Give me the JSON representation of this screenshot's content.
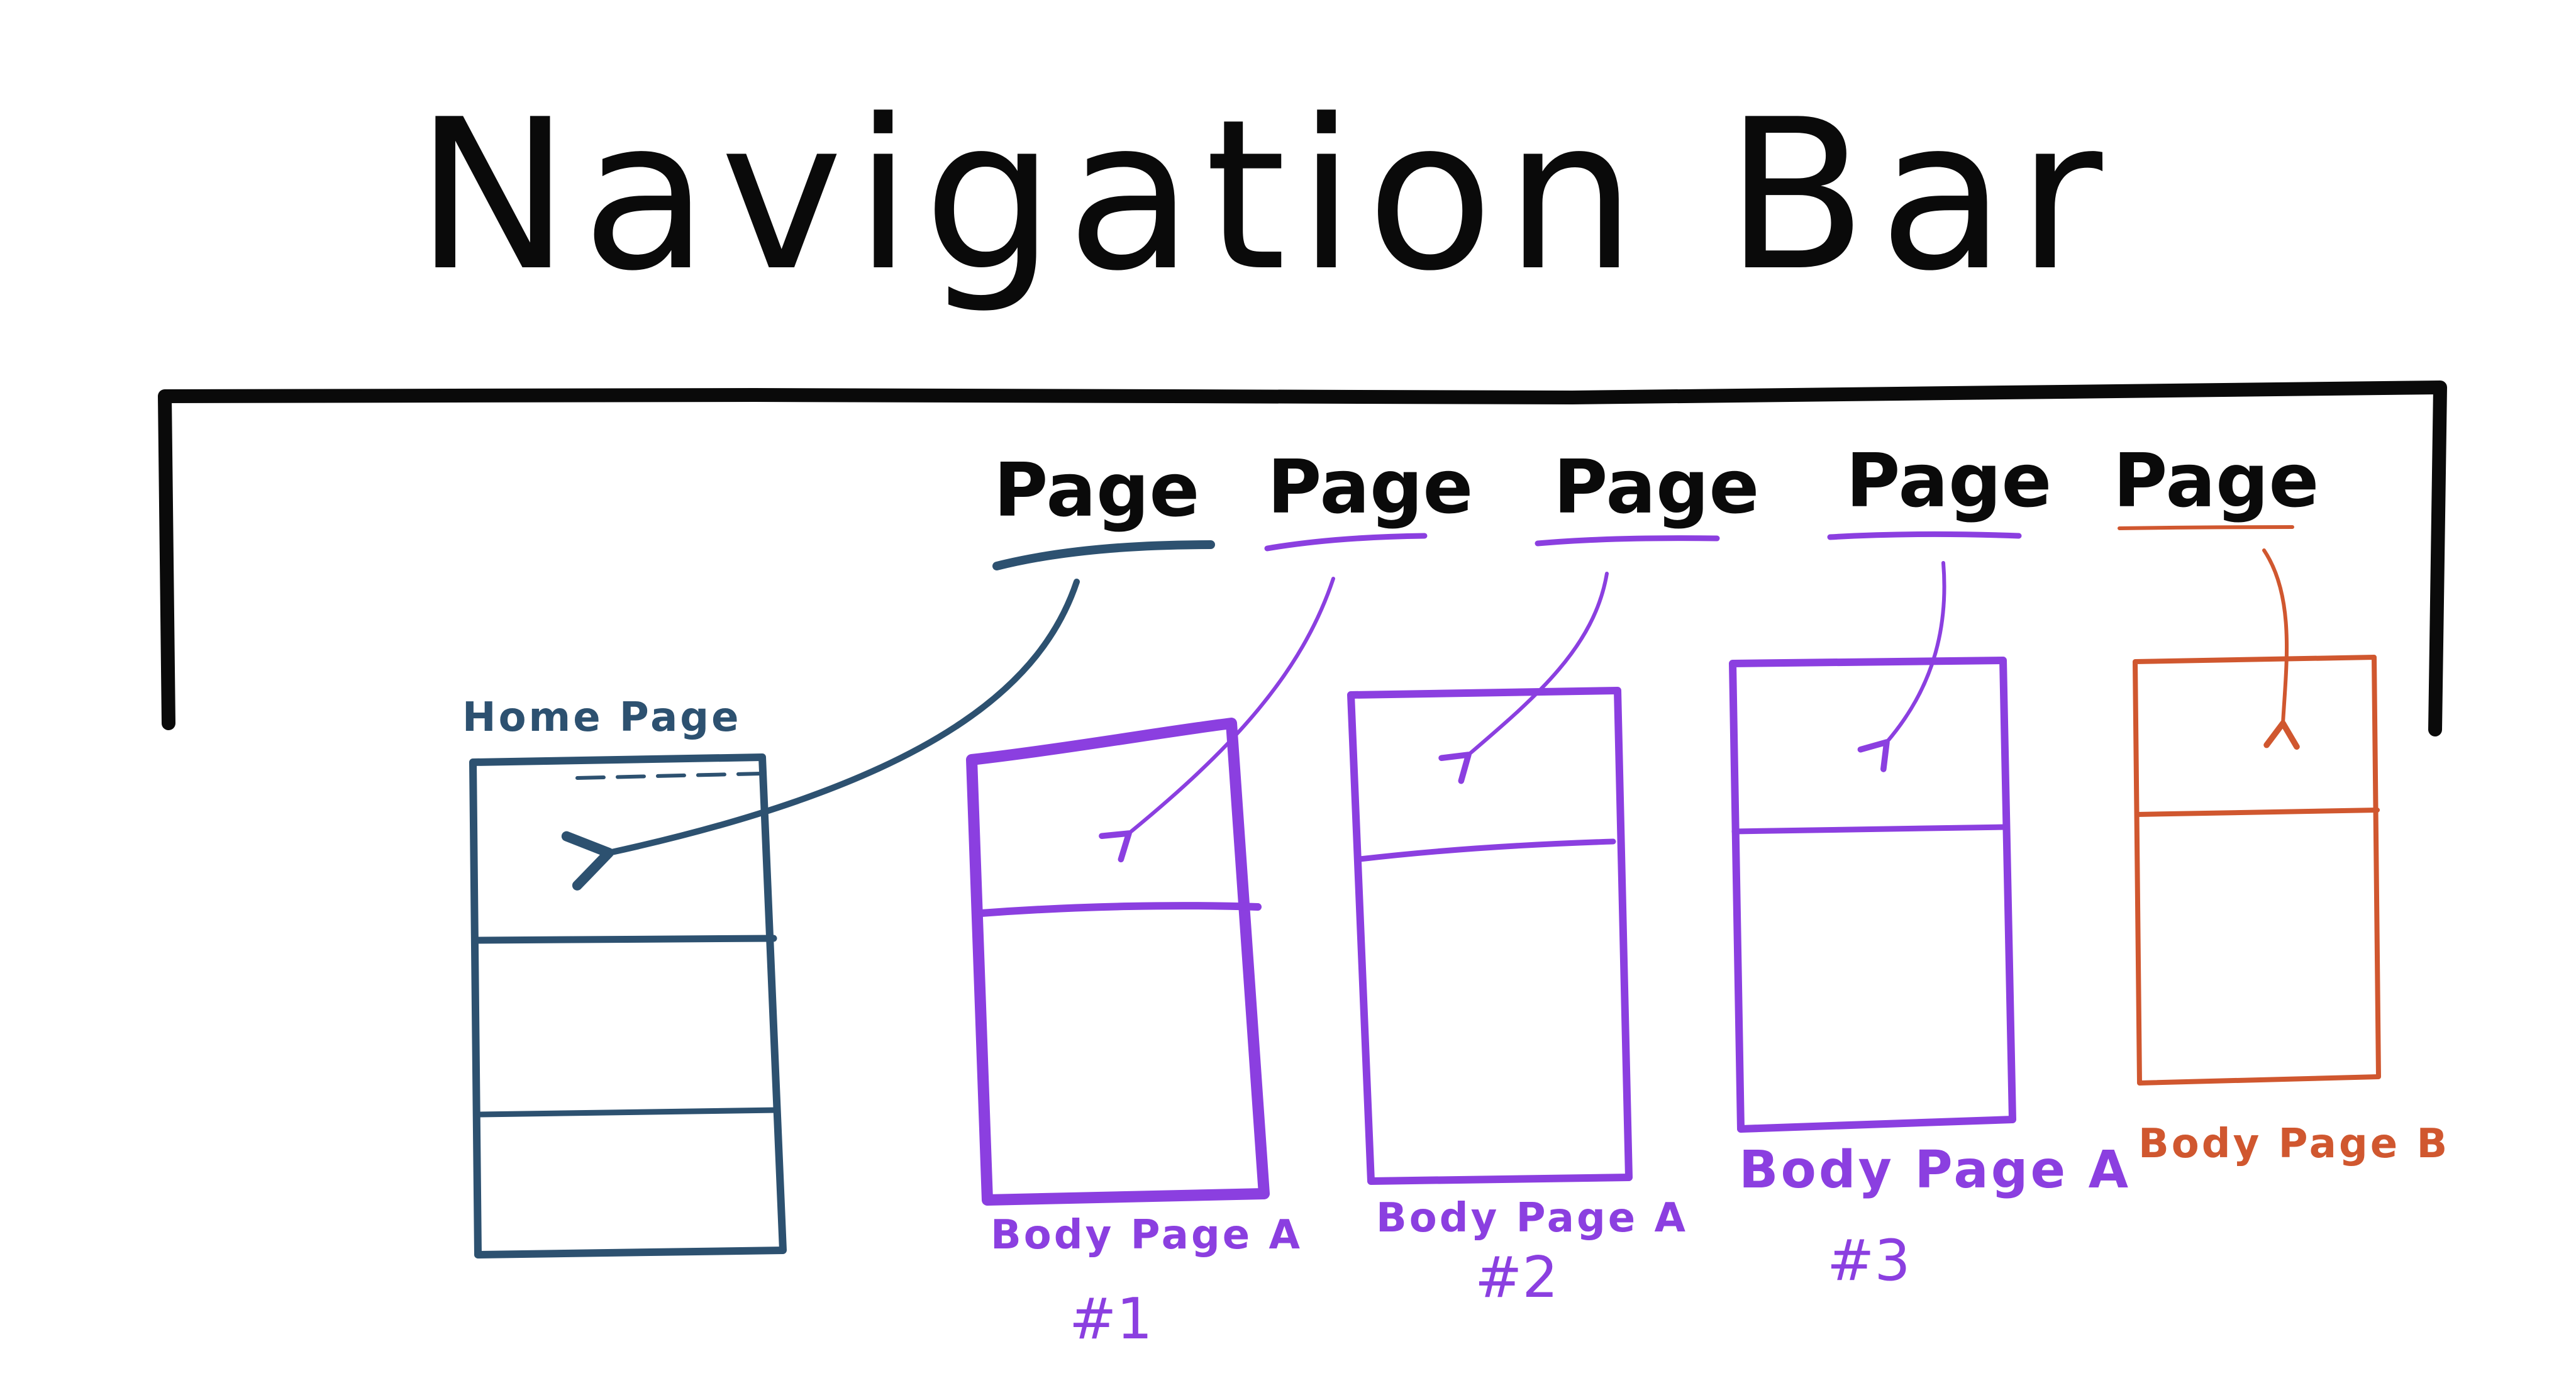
{
  "title": "Navigation Bar",
  "colors": {
    "ink": "#0a0a0a",
    "home": "#2d5170",
    "purple": "#8b3fe0",
    "orange": "#d0572f"
  },
  "nav_tabs": [
    {
      "label": "Page",
      "color_key": "home"
    },
    {
      "label": "Page",
      "color_key": "purple"
    },
    {
      "label": "Page",
      "color_key": "purple"
    },
    {
      "label": "Page",
      "color_key": "purple"
    },
    {
      "label": "Page",
      "color_key": "orange"
    }
  ],
  "pages": [
    {
      "caption": "Home Page",
      "number": "",
      "color_key": "home"
    },
    {
      "caption": "Body Page A",
      "number": "#1",
      "color_key": "purple"
    },
    {
      "caption": "Body Page A",
      "number": "#2",
      "color_key": "purple"
    },
    {
      "caption": "Body Page A",
      "number": "#3",
      "color_key": "purple"
    },
    {
      "caption": "Body Page B",
      "number": "",
      "color_key": "orange"
    }
  ]
}
